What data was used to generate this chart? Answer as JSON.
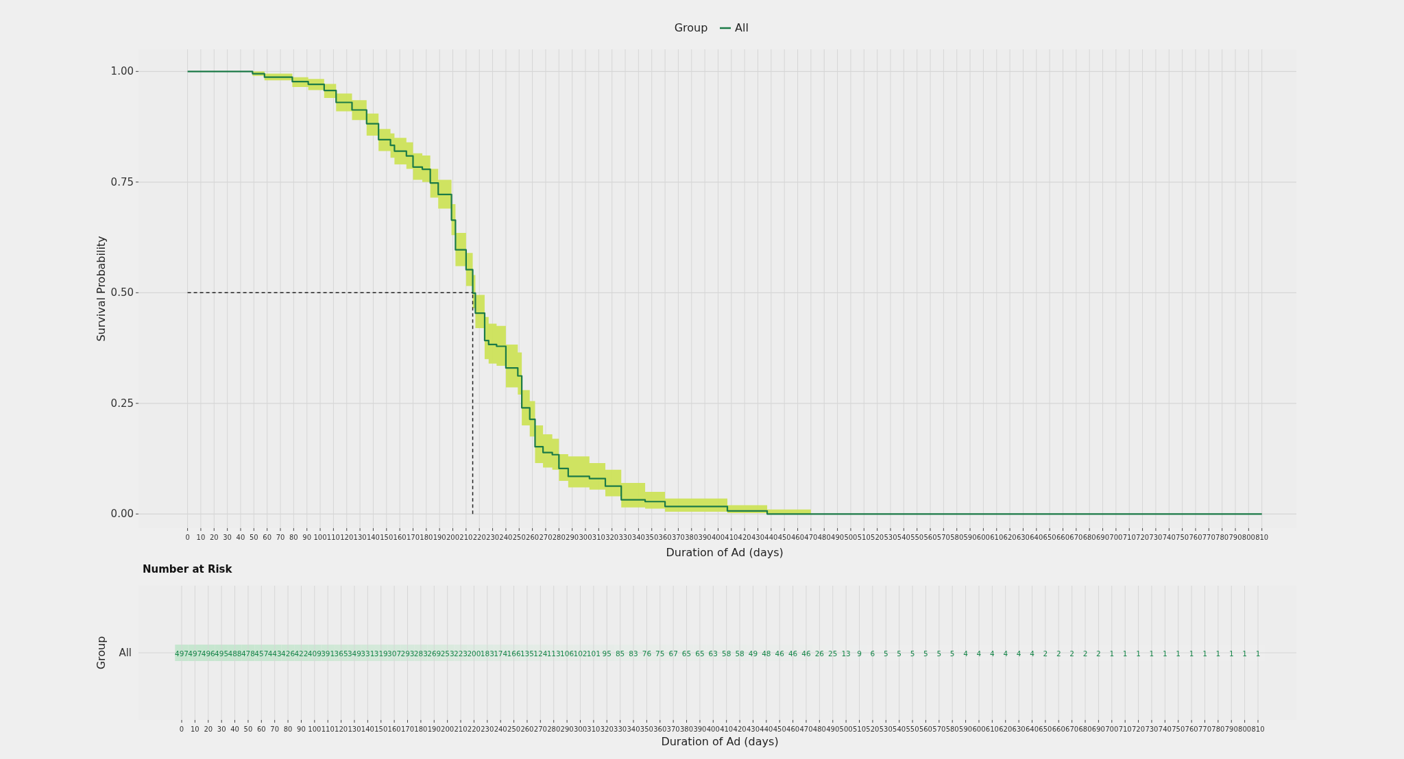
{
  "chart_data": [
    {
      "type": "step",
      "xlabel": "Duration of Ad (days)",
      "ylabel": "Survival Probability",
      "legend_title": "Group",
      "legend": "top",
      "grid": true,
      "x": [
        0,
        22,
        49,
        58,
        79,
        91,
        103,
        112,
        124,
        135,
        144,
        153,
        156,
        165,
        170,
        177,
        183,
        189,
        199,
        202,
        210,
        215,
        217,
        224,
        227,
        233,
        240,
        249,
        252,
        258,
        262,
        268,
        275,
        280,
        287,
        303,
        315,
        327,
        345,
        360,
        407,
        437,
        470,
        810
      ],
      "series": [
        {
          "name": "All",
          "color": "#1b7a47",
          "values": [
            1,
            1,
            0.995,
            0.987,
            0.977,
            0.971,
            0.957,
            0.93,
            0.913,
            0.882,
            0.846,
            0.833,
            0.82,
            0.809,
            0.784,
            0.779,
            0.748,
            0.722,
            0.664,
            0.597,
            0.552,
            0.499,
            0.454,
            0.392,
            0.383,
            0.379,
            0.33,
            0.312,
            0.24,
            0.214,
            0.152,
            0.139,
            0.134,
            0.103,
            0.085,
            0.08,
            0.063,
            0.032,
            0.028,
            0.017,
            0.007,
            0,
            0,
            0
          ],
          "lower": [
            1,
            1,
            0.99,
            0.98,
            0.965,
            0.958,
            0.94,
            0.91,
            0.89,
            0.855,
            0.82,
            0.805,
            0.79,
            0.78,
            0.755,
            0.75,
            0.715,
            0.69,
            0.63,
            0.56,
            0.515,
            0.465,
            0.42,
            0.35,
            0.34,
            0.335,
            0.286,
            0.27,
            0.2,
            0.175,
            0.115,
            0.105,
            0.1,
            0.075,
            0.06,
            0.055,
            0.04,
            0.015,
            0.012,
            0.005,
            0.002,
            0,
            0,
            null
          ],
          "upper": [
            1,
            1,
            1,
            0.995,
            0.987,
            0.983,
            0.972,
            0.95,
            0.935,
            0.905,
            0.87,
            0.86,
            0.85,
            0.84,
            0.815,
            0.81,
            0.78,
            0.755,
            0.7,
            0.635,
            0.59,
            0.54,
            0.495,
            0.445,
            0.43,
            0.425,
            0.383,
            0.365,
            0.28,
            0.255,
            0.2,
            0.18,
            0.17,
            0.135,
            0.13,
            0.115,
            0.1,
            0.07,
            0.05,
            0.035,
            0.02,
            0.01,
            0.005,
            null
          ]
        }
      ],
      "ref_lines": [
        {
          "axis": "y",
          "value": 0.5,
          "line_style": "dashed"
        },
        {
          "axis": "x",
          "value": 215,
          "line_style": "dashed"
        }
      ],
      "xlim": [
        -37,
        836
      ],
      "ylim": [
        -0.032,
        1.05
      ],
      "xticks": [
        0,
        10,
        20,
        30,
        40,
        50,
        60,
        70,
        80,
        90,
        100,
        110,
        120,
        130,
        140,
        150,
        160,
        170,
        180,
        190,
        200,
        210,
        220,
        230,
        240,
        250,
        260,
        270,
        280,
        290,
        300,
        310,
        320,
        330,
        340,
        350,
        360,
        370,
        380,
        390,
        400,
        410,
        420,
        430,
        440,
        450,
        460,
        470,
        480,
        490,
        500,
        510,
        520,
        530,
        540,
        550,
        560,
        570,
        580,
        590,
        600,
        610,
        620,
        630,
        640,
        650,
        660,
        670,
        680,
        690,
        700,
        710,
        720,
        730,
        740,
        750,
        760,
        770,
        780,
        790,
        800,
        810
      ],
      "yticks": [
        {
          "value": 0,
          "label": "0.00"
        },
        {
          "value": 0.25,
          "label": "0.25"
        },
        {
          "value": 0.5,
          "label": "0.50"
        },
        {
          "value": 0.75,
          "label": "0.75"
        },
        {
          "value": 1,
          "label": "1.00"
        }
      ]
    },
    {
      "type": "heatmap",
      "title": "Number at Risk",
      "xlabel": "Duration of Ad (days)",
      "ylabel": "Group",
      "grid": true,
      "categories": [
        "0",
        "10",
        "20",
        "30",
        "40",
        "50",
        "60",
        "70",
        "80",
        "90",
        "100",
        "110",
        "120",
        "130",
        "140",
        "150",
        "160",
        "170",
        "180",
        "190",
        "200",
        "210",
        "220",
        "230",
        "240",
        "250",
        "260",
        "270",
        "280",
        "290",
        "300",
        "310",
        "320",
        "330",
        "340",
        "350",
        "360",
        "370",
        "380",
        "390",
        "400",
        "410",
        "420",
        "430",
        "440",
        "450",
        "460",
        "470",
        "480",
        "490",
        "500",
        "510",
        "520",
        "530",
        "540",
        "550",
        "560",
        "570",
        "580",
        "590",
        "600",
        "610",
        "620",
        "630",
        "640",
        "650",
        "660",
        "670",
        "680",
        "690",
        "700",
        "710",
        "720",
        "730",
        "740",
        "750",
        "760",
        "770",
        "780",
        "790",
        "800",
        "810"
      ],
      "y_categories": [
        "All"
      ],
      "cell_labels": [
        [
          "497",
          "497",
          "496",
          "495",
          "488",
          "478",
          "457",
          "443",
          "426",
          "422",
          "409",
          "391",
          "365",
          "349",
          "331",
          "319",
          "307",
          "293",
          "283",
          "269",
          "253",
          "223",
          "200",
          "183",
          "174",
          "166",
          "135",
          "124",
          "113",
          "106",
          "102",
          "101",
          "95",
          "85",
          "83",
          "76",
          "75",
          "67",
          "65",
          "65",
          "63",
          "58",
          "58",
          "49",
          "48",
          "46",
          "46",
          "46",
          "26",
          "25",
          "13",
          "9",
          "6",
          "5",
          "5",
          "5",
          "5",
          "5",
          "5",
          "4",
          "4",
          "4",
          "4",
          "4",
          "4",
          "2",
          "2",
          "2",
          "2",
          "2",
          "1",
          "1",
          "1",
          "1",
          "1",
          "1",
          "1",
          "1",
          "1",
          "1",
          "1",
          "1"
        ]
      ],
      "cells": [
        [
          497,
          497,
          496,
          495,
          488,
          478,
          457,
          443,
          426,
          422,
          409,
          391,
          365,
          349,
          331,
          319,
          307,
          293,
          283,
          269,
          253,
          223,
          200,
          183,
          174,
          166,
          135,
          124,
          113,
          106,
          102,
          101,
          95,
          85,
          83,
          76,
          75,
          67,
          65,
          65,
          63,
          58,
          58,
          49,
          48,
          46,
          46,
          46,
          26,
          25,
          13,
          9,
          6,
          5,
          5,
          5,
          5,
          5,
          5,
          4,
          4,
          4,
          4,
          4,
          4,
          2,
          2,
          2,
          2,
          2,
          1,
          1,
          1,
          1,
          1,
          1,
          1,
          1,
          1,
          1,
          1,
          1
        ]
      ]
    }
  ]
}
